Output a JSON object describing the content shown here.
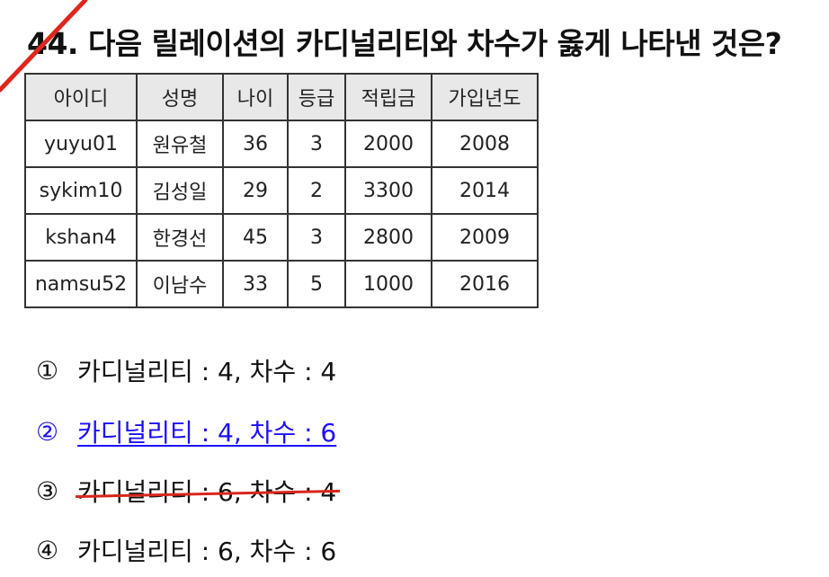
{
  "question": {
    "text": "44. 다음 릴레이션의 카디널리티와 차수가 옳게 나타낸 것은?"
  },
  "table": {
    "headers": [
      "아이디",
      "성명",
      "나이",
      "등급",
      "적립금",
      "가입년도"
    ],
    "rows": [
      [
        "yuyu01",
        "원유철",
        "36",
        "3",
        "2000",
        "2008"
      ],
      [
        "sykim10",
        "김성일",
        "29",
        "2",
        "3300",
        "2014"
      ],
      [
        "kshan4",
        "한경선",
        "45",
        "3",
        "2800",
        "2009"
      ],
      [
        "namsu52",
        "이남수",
        "33",
        "5",
        "1000",
        "2016"
      ]
    ]
  },
  "options": [
    {
      "num": "①",
      "text": "카디널리티 : 4, 차수 : 4"
    },
    {
      "num": "②",
      "text": "카디널리티 : 4, 차수 : 6"
    },
    {
      "num": "③",
      "text": "카디널리티 : 6, 차수 : 4"
    },
    {
      "num": "④",
      "text": "카디널리티 : 6, 차수 : 6"
    }
  ],
  "colors": {
    "correct_answer": "#1a0dff",
    "strike_mark": "#d8261c",
    "slash_mark": "#e0261c",
    "header_bg": "#e8e8e8"
  }
}
